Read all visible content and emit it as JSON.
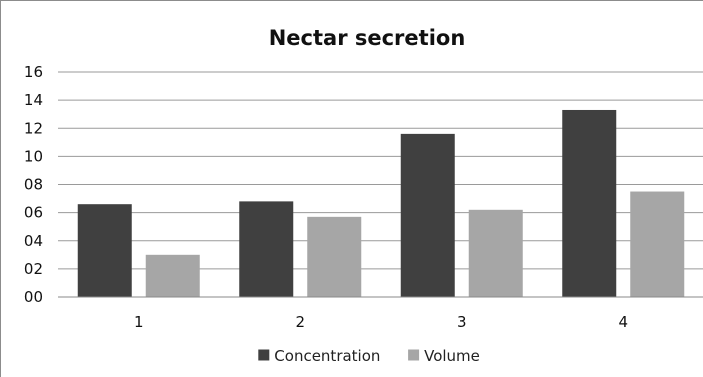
{
  "chart_data": {
    "type": "bar",
    "title": "Nectar secretion",
    "xlabel": "",
    "ylabel": "",
    "categories": [
      "1",
      "2",
      "3",
      "4"
    ],
    "ylim": [
      0,
      16
    ],
    "yticks": [
      0,
      2,
      4,
      6,
      8,
      10,
      12,
      14,
      16
    ],
    "ytick_labels": [
      "00",
      "02",
      "04",
      "06",
      "08",
      "10",
      "12",
      "14",
      "16"
    ],
    "grid": true,
    "legend_position": "bottom",
    "series": [
      {
        "name": "Concentration",
        "color": "#404040",
        "values": [
          6.6,
          6.8,
          11.6,
          13.3
        ]
      },
      {
        "name": "Volume",
        "color": "#a6a6a6",
        "values": [
          3.0,
          5.7,
          6.2,
          7.5
        ]
      }
    ]
  }
}
